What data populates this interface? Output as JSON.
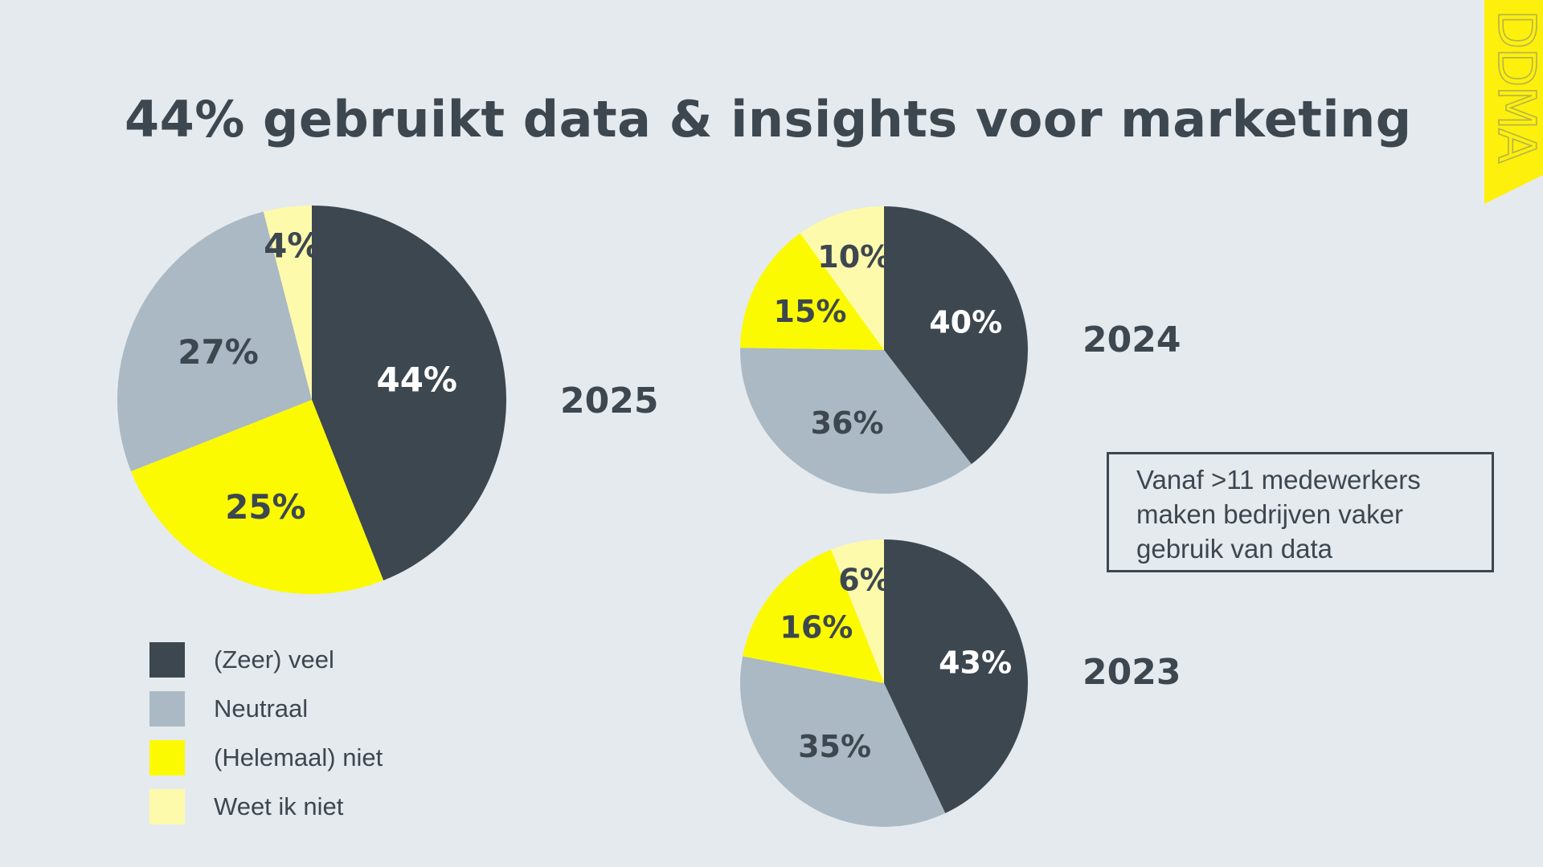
{
  "title": "44% gebruikt data & insights voor marketing",
  "logo_text": "DDMA",
  "colors": {
    "background": "#e5eaee",
    "text": "#3d4750",
    "zeer_veel": "#3d4750",
    "neutraal": "#aab9c3",
    "helemaal_niet": "#fcfa00",
    "weet_ik_niet": "#fefaab",
    "accent": "#fdf00d"
  },
  "legend": [
    {
      "label": "(Zeer) veel",
      "color": "#3d4750"
    },
    {
      "label": "Neutraal",
      "color": "#aab9c3"
    },
    {
      "label": "(Helemaal) niet",
      "color": "#fcfa00"
    },
    {
      "label": "Weet ik niet",
      "color": "#fefaab"
    }
  ],
  "note": "Vanaf >11 medewerkers maken bedrijven vaker gebruik van data",
  "chart_data": [
    {
      "type": "pie",
      "title": "2025",
      "categories": [
        "(Zeer) veel",
        "(Helemaal) niet",
        "Neutraal",
        "Weet ik niet"
      ],
      "values": [
        44,
        25,
        27,
        4
      ],
      "labels": [
        "44%",
        "25%",
        "27%",
        "4%"
      ]
    },
    {
      "type": "pie",
      "title": "2024",
      "categories": [
        "(Zeer) veel",
        "Neutraal",
        "(Helemaal) niet",
        "Weet ik niet"
      ],
      "values": [
        40,
        36,
        15,
        10
      ],
      "labels": [
        "40%",
        "36%",
        "15%",
        "10%"
      ]
    },
    {
      "type": "pie",
      "title": "2023",
      "categories": [
        "(Zeer) veel",
        "Neutraal",
        "(Helemaal) niet",
        "Weet ik niet"
      ],
      "values": [
        43,
        35,
        16,
        6
      ],
      "labels": [
        "43%",
        "35%",
        "16%",
        "6%"
      ]
    }
  ]
}
